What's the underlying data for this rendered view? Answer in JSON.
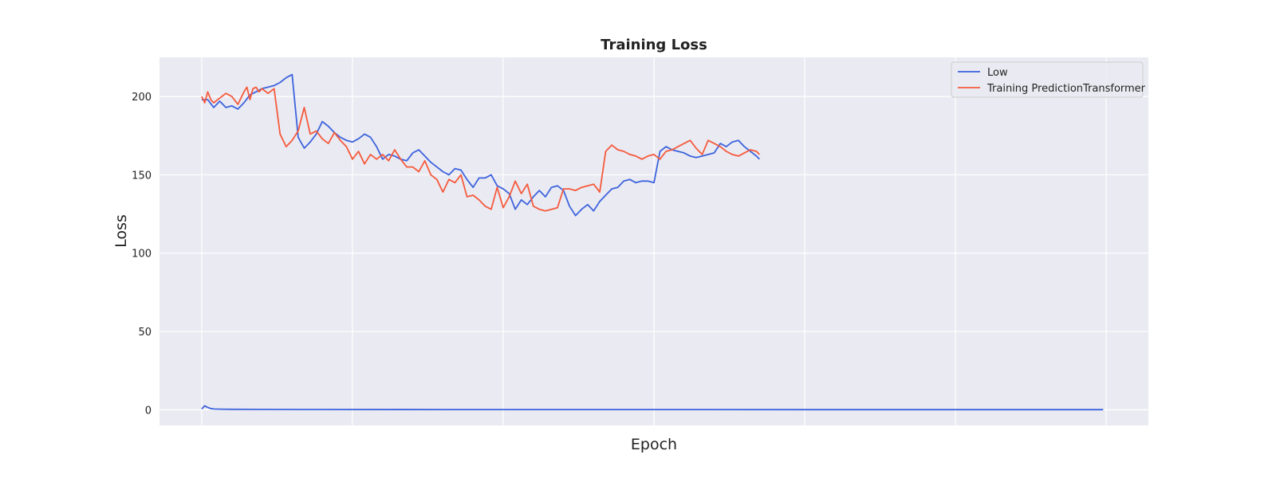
{
  "chart_data": {
    "type": "line",
    "title": "Training Loss",
    "xlabel": "Epoch",
    "ylabel": "Loss",
    "ylim": [
      -10,
      225
    ],
    "xlim": [
      -14,
      314
    ],
    "x_ticks": [
      0,
      50,
      100,
      150,
      200,
      250,
      300
    ],
    "x_tick_labels_shown": false,
    "y_ticks": [
      0,
      50,
      100,
      150,
      200
    ],
    "grid": true,
    "legend_position": "top-right",
    "background_color": "#eaeaf2",
    "series": [
      {
        "name": "Low",
        "color": "#3d63dd",
        "segments": [
          {
            "x": [
              0,
              2,
              4,
              6,
              8,
              10,
              12,
              14,
              16,
              18,
              20,
              22,
              24,
              26,
              28,
              30,
              32,
              34,
              36,
              38,
              40,
              42,
              44,
              46,
              48,
              50,
              52,
              54,
              56,
              58,
              60,
              62,
              64,
              66,
              68,
              70,
              72,
              74,
              76,
              78,
              80,
              82,
              84,
              86,
              88,
              90,
              92,
              94,
              96,
              98,
              100,
              102,
              104,
              106,
              108,
              110,
              112,
              114,
              116,
              118,
              120,
              122,
              124,
              126,
              128,
              130,
              132,
              134,
              136,
              138,
              140,
              142,
              144,
              146,
              148,
              150,
              152,
              154,
              156,
              158,
              160,
              162,
              164,
              166,
              168,
              170,
              172,
              174,
              176,
              178,
              180,
              182,
              184,
              185
            ],
            "y": [
              198,
              198,
              193,
              197,
              193,
              194,
              192,
              196,
              201,
              203,
              205,
              206,
              207,
              209,
              212,
              214,
              174,
              167,
              171,
              176,
              184,
              181,
              177,
              174,
              172,
              171,
              173,
              176,
              174,
              168,
              160,
              163,
              162,
              160,
              159,
              164,
              166,
              162,
              158,
              155,
              152,
              150,
              154,
              153,
              147,
              142,
              148,
              148,
              150,
              143,
              141,
              138,
              128,
              134,
              131,
              136,
              140,
              136,
              142,
              143,
              140,
              130,
              124,
              128,
              131,
              127,
              133,
              137,
              141,
              142,
              146,
              147,
              145,
              146,
              146,
              145,
              165,
              168,
              166,
              165,
              164,
              162,
              161,
              162,
              163,
              164,
              170,
              168,
              171,
              172,
              168,
              165,
              162,
              160
            ]
          },
          {
            "x": [
              0,
              1,
              2,
              3,
              4,
              6,
              10,
              20,
              40,
              80,
              120,
              160,
              200,
              240,
              280,
              299
            ],
            "y": [
              0.5,
              2.5,
              1.5,
              0.8,
              0.5,
              0.4,
              0.3,
              0.2,
              0.15,
              0.12,
              0.1,
              0.1,
              0.08,
              0.08,
              0.07,
              0.07
            ]
          }
        ]
      },
      {
        "name": "Training PredictionTransformer",
        "color": "#f55a3c",
        "segments": [
          {
            "x": [
              0,
              1,
              2,
              3,
              4,
              6,
              8,
              10,
              12,
              14,
              15,
              16,
              17,
              18,
              19,
              20,
              22,
              24,
              26,
              28,
              30,
              32,
              34,
              36,
              38,
              40,
              42,
              44,
              46,
              48,
              50,
              52,
              54,
              56,
              58,
              60,
              62,
              64,
              66,
              68,
              70,
              72,
              74,
              76,
              78,
              80,
              82,
              84,
              86,
              88,
              90,
              92,
              94,
              96,
              98,
              100,
              102,
              104,
              106,
              108,
              110,
              112,
              114,
              116,
              118,
              120,
              122,
              124,
              126,
              128,
              130,
              132,
              134,
              136,
              138,
              140,
              142,
              144,
              146,
              148,
              150,
              152,
              154,
              156,
              158,
              160,
              162,
              164,
              166,
              168,
              170,
              172,
              174,
              176,
              178,
              180,
              182,
              184,
              185
            ],
            "y": [
              200,
              196,
              203,
              198,
              196,
              199,
              202,
              200,
              195,
              203,
              206,
              198,
              205,
              206,
              203,
              205,
              202,
              205,
              176,
              168,
              172,
              178,
              193,
              176,
              178,
              173,
              170,
              177,
              172,
              168,
              160,
              165,
              157,
              163,
              160,
              163,
              159,
              166,
              160,
              155,
              155,
              152,
              159,
              150,
              147,
              139,
              147,
              145,
              150,
              136,
              137,
              134,
              130,
              128,
              142,
              129,
              136,
              146,
              138,
              144,
              130,
              128,
              127,
              128,
              129,
              141,
              141,
              140,
              142,
              143,
              144,
              139,
              165,
              169,
              166,
              165,
              163,
              162,
              160,
              162,
              163,
              160,
              165,
              166,
              168,
              170,
              172,
              167,
              163,
              172,
              170,
              168,
              165,
              163,
              162,
              164,
              166,
              165,
              163
            ]
          }
        ]
      }
    ]
  }
}
